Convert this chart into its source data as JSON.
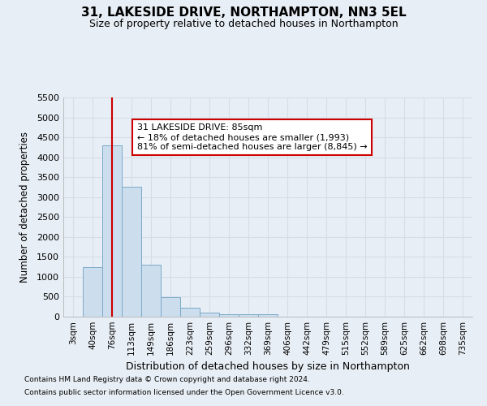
{
  "title": "31, LAKESIDE DRIVE, NORTHAMPTON, NN3 5EL",
  "subtitle": "Size of property relative to detached houses in Northampton",
  "xlabel": "Distribution of detached houses by size in Northampton",
  "ylabel": "Number of detached properties",
  "footnote1": "Contains HM Land Registry data © Crown copyright and database right 2024.",
  "footnote2": "Contains public sector information licensed under the Open Government Licence v3.0.",
  "bar_labels": [
    "3sqm",
    "40sqm",
    "76sqm",
    "113sqm",
    "149sqm",
    "186sqm",
    "223sqm",
    "259sqm",
    "296sqm",
    "332sqm",
    "369sqm",
    "406sqm",
    "442sqm",
    "479sqm",
    "515sqm",
    "552sqm",
    "589sqm",
    "625sqm",
    "662sqm",
    "698sqm",
    "735sqm"
  ],
  "bar_values": [
    0,
    1250,
    4300,
    3250,
    1300,
    480,
    220,
    110,
    70,
    55,
    55,
    0,
    0,
    0,
    0,
    0,
    0,
    0,
    0,
    0,
    0
  ],
  "bar_color": "#ccdded",
  "bar_edge_color": "#7aaac8",
  "grid_color": "#d4dde8",
  "background_color": "#e8eef5",
  "annotation_text": "31 LAKESIDE DRIVE: 85sqm\n← 18% of detached houses are smaller (1,993)\n81% of semi-detached houses are larger (8,845) →",
  "annotation_box_color": "#ffffff",
  "annotation_box_edge_color": "#cc0000",
  "redline_x": 2,
  "ylim": [
    0,
    5500
  ],
  "yticks": [
    0,
    500,
    1000,
    1500,
    2000,
    2500,
    3000,
    3500,
    4000,
    4500,
    5000,
    5500
  ]
}
